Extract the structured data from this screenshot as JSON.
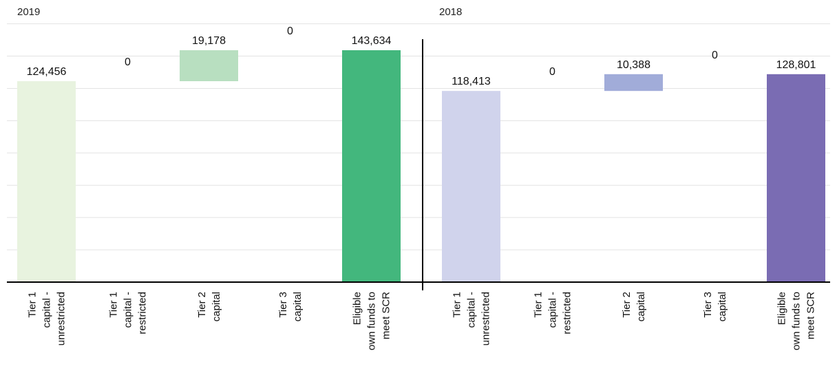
{
  "chart_data": [
    {
      "type": "bar",
      "title": "2019",
      "categories": [
        "Tier 1 capital - unrestricted",
        "Tier 1 capital - restricted",
        "Tier 2 capital",
        "Tier 3 capital",
        "Eligible own funds to meet SCR"
      ],
      "category_lines": [
        [
          "Tier 1",
          "capital -",
          "unrestricted"
        ],
        [
          "Tier 1",
          "capital -",
          "restricted"
        ],
        [
          "Tier 2",
          "capital"
        ],
        [
          "Tier 3",
          "capital"
        ],
        [
          "Eligible",
          "own funds to",
          "meet SCR"
        ]
      ],
      "values": [
        124456,
        0,
        19178,
        0,
        143634
      ],
      "value_labels": [
        "124,456",
        "0",
        "19,178",
        "0",
        "143,634"
      ],
      "waterfall": true,
      "colors": [
        "#e8f3df",
        "#e8f3df",
        "#b8dfc0",
        "#b8dfc0",
        "#43b77d"
      ]
    },
    {
      "type": "bar",
      "title": "2018",
      "categories": [
        "Tier 1 capital - unrestricted",
        "Tier 1 capital - restricted",
        "Tier 2 capital",
        "Tier 3 capital",
        "Eligible own funds to meet SCR"
      ],
      "category_lines": [
        [
          "Tier 1",
          "capital -",
          "unrestricted"
        ],
        [
          "Tier 1",
          "capital -",
          "restricted"
        ],
        [
          "Tier 2",
          "capital"
        ],
        [
          "Tier 3",
          "capital"
        ],
        [
          "Eligible",
          "own funds to",
          "meet SCR"
        ]
      ],
      "values": [
        118413,
        0,
        10388,
        0,
        128801
      ],
      "value_labels": [
        "118,413",
        "0",
        "10,388",
        "0",
        "128,801"
      ],
      "waterfall": true,
      "colors": [
        "#d0d3ec",
        "#d0d3ec",
        "#a1acd9",
        "#a1acd9",
        "#7a6cb3"
      ]
    }
  ],
  "grid": true,
  "ylim": [
    0,
    165000
  ]
}
